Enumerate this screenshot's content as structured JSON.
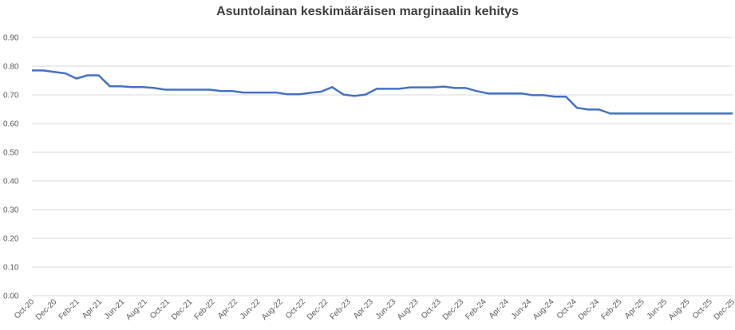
{
  "chart_data": {
    "type": "line",
    "title": "Asuntolainan keskimääräisen marginaalin kehitys",
    "xlabel": "",
    "ylabel": "",
    "ylim": [
      0,
      0.9
    ],
    "yticks": [
      "0.00",
      "0.10",
      "0.20",
      "0.30",
      "0.40",
      "0.50",
      "0.60",
      "0.70",
      "0.80",
      "0.90"
    ],
    "xtick_labels": [
      "Oct-20",
      "Dec-20",
      "Feb-21",
      "Apr-21",
      "Jun-21",
      "Aug-21",
      "Oct-21",
      "Dec-21",
      "Feb-22",
      "Apr-22",
      "Jun-22",
      "Aug-22",
      "Oct-22",
      "Dec-22",
      "Feb-23",
      "Apr-23",
      "Jun-23",
      "Aug-23",
      "Oct-23",
      "Dec-23",
      "Feb-24",
      "Apr-24",
      "Jun-24",
      "Aug-24",
      "Oct-24",
      "Dec-24",
      "Feb-25",
      "Apr-25",
      "Jun-25",
      "Aug-25",
      "Oct-25",
      "Dec-25"
    ],
    "grid": true,
    "legend": "none",
    "line_color": "#4472c4",
    "series": [
      {
        "values": [
          0.785,
          0.785,
          0.78,
          0.775,
          0.757,
          0.768,
          0.768,
          0.73,
          0.73,
          0.727,
          0.727,
          0.724,
          0.718,
          0.718,
          0.718,
          0.718,
          0.718,
          0.713,
          0.713,
          0.708,
          0.708,
          0.708,
          0.708,
          0.702,
          0.702,
          0.707,
          0.711,
          0.727,
          0.701,
          0.696,
          0.701,
          0.721,
          0.721,
          0.721,
          0.726,
          0.726,
          0.726,
          0.729,
          0.724,
          0.724,
          0.713,
          0.705,
          0.705,
          0.705,
          0.705,
          0.699,
          0.699,
          0.694,
          0.694,
          0.655,
          0.649,
          0.649,
          0.635,
          0.635,
          0.635,
          0.635,
          0.635,
          0.635,
          0.635,
          0.635,
          0.635,
          0.635,
          0.635,
          0.635
        ]
      }
    ]
  }
}
